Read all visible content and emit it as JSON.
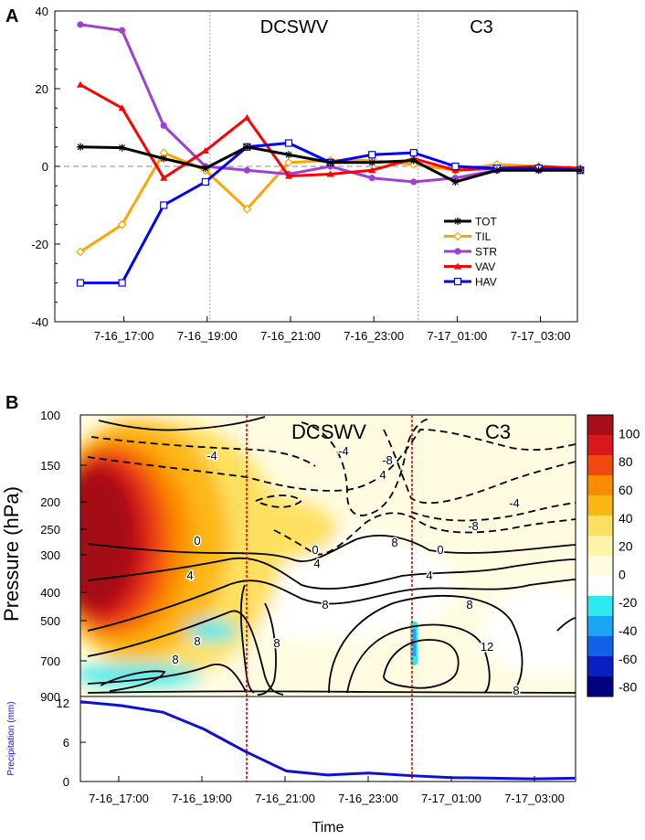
{
  "panel_a_label": "A",
  "panel_b_label": "B",
  "chart_data": [
    {
      "type": "line",
      "panel": "A",
      "x_ticks": [
        "7-16_17:00",
        "7-16_19:00",
        "7-16_21:00",
        "7-16_23:00",
        "7-17_01:00",
        "7-17_03:00"
      ],
      "ylim": [
        -40,
        40
      ],
      "yticks": [
        40,
        20,
        0,
        -20,
        -40
      ],
      "annotations": [
        "DCSWV",
        "C3"
      ],
      "series": [
        {
          "name": "TOT",
          "color": "#000000",
          "marker": "star",
          "values": [
            5,
            4.8,
            2,
            -0.5,
            5,
            3,
            1,
            1,
            1.5,
            -4,
            -1,
            -1,
            -1
          ]
        },
        {
          "name": "TIL",
          "color": "#ffa500",
          "marker": "diamond",
          "values": [
            -22,
            -15,
            3.5,
            -1,
            -11,
            1,
            1.5,
            1.5,
            0.5,
            -1,
            0.5,
            0,
            -0.5
          ]
        },
        {
          "name": "STR",
          "color": "#a040d0",
          "marker": "circle",
          "values": [
            36.5,
            35,
            10.5,
            0,
            -1,
            -2,
            0,
            -3,
            -4,
            -3,
            -1,
            -1,
            -1
          ]
        },
        {
          "name": "VAV",
          "color": "#ff0000",
          "marker": "triangle",
          "values": [
            21,
            15,
            -3,
            4,
            12.5,
            -2.5,
            -2,
            -1,
            2,
            -1,
            -0.5,
            0,
            -0.5
          ]
        },
        {
          "name": "HAV",
          "color": "#0000ff",
          "marker": "square",
          "values": [
            -30,
            -30,
            -10,
            -4,
            5,
            6,
            1,
            3,
            3.5,
            0,
            -0.5,
            -0.5,
            -1
          ]
        }
      ]
    },
    {
      "type": "heatmap",
      "panel": "B",
      "ylabel": "Pressure (hPa)",
      "pressure_levels": [
        "100",
        "150",
        "200",
        "250",
        "300",
        "400",
        "500",
        "700",
        "900"
      ],
      "x_ticks": [
        "7-16_17:00",
        "7-16_19:00",
        "7-16_21:00",
        "7-16_23:00",
        "7-17_01:00",
        "7-17_03:00"
      ],
      "annotations": [
        "DCSWV",
        "C3"
      ],
      "contour_labels": [
        "-4",
        "0",
        "4",
        "8",
        "4",
        "0",
        "-4",
        "8",
        "-8",
        "-4",
        "0",
        "4",
        "8",
        "12",
        "8",
        "4",
        "-8",
        "8",
        "8",
        "8"
      ],
      "colorbar": {
        "labels": [
          "100",
          "80",
          "60",
          "40",
          "20",
          "0",
          "-20",
          "-40",
          "-60",
          "-80"
        ],
        "colors": [
          "#a50f15",
          "#d7191c",
          "#f04a10",
          "#fb8c00",
          "#fdb715",
          "#fee060",
          "#fff4a8",
          "#fffbe0",
          "#ffffff",
          "#2ee8f0",
          "#1aa6f0",
          "#1060e8",
          "#0820c0",
          "#000080"
        ]
      }
    },
    {
      "type": "line",
      "panel": "B-precip",
      "ylabel": "Precipitation (mm)",
      "xlabel": "Time",
      "x_ticks": [
        "7-16_17:00",
        "7-16_19:00",
        "7-16_21:00",
        "7-16_23:00",
        "7-17_01:00",
        "7-17_03:00"
      ],
      "ylim": [
        0,
        13
      ],
      "yticks": [
        12,
        6,
        0
      ],
      "series": [
        {
          "name": "Precipitation",
          "color": "#1010d0",
          "values": [
            12.2,
            11.6,
            10.6,
            8.0,
            4.6,
            1.6,
            1.0,
            1.3,
            0.9,
            0.6,
            0.5,
            0.4,
            0.5
          ]
        }
      ]
    }
  ]
}
